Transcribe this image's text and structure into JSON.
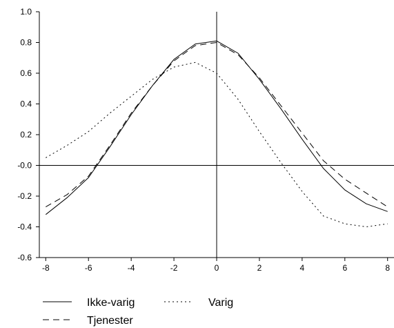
{
  "chart_data": {
    "type": "line",
    "title": "",
    "xlabel": "",
    "ylabel": "",
    "xlim": [
      -8.3,
      8.3
    ],
    "ylim": [
      -0.6,
      1.0
    ],
    "x_ticks": [
      -8,
      -6,
      -4,
      -2,
      0,
      2,
      4,
      6,
      8
    ],
    "x_tick_labels": [
      "-8",
      "-6",
      "-4",
      "-2",
      "0",
      "2",
      "4",
      "6",
      "8"
    ],
    "y_ticks": [
      1.0,
      0.8,
      0.6,
      0.4,
      0.2,
      0.0,
      -0.2,
      -0.4,
      -0.6
    ],
    "y_tick_labels": [
      "1.0",
      "0.8",
      "0.6",
      "0.4",
      "0.2",
      "-0.0",
      "-0.2",
      "-0.4",
      "-0.6"
    ],
    "grid": false,
    "legend_position": "bottom-left",
    "x": [
      -8,
      -7,
      -6,
      -5,
      -4,
      -3,
      -2,
      -1,
      0,
      1,
      2,
      3,
      4,
      5,
      6,
      7,
      8
    ],
    "series": [
      {
        "name": "Ikke-varig",
        "style": "solid",
        "values": [
          -0.32,
          -0.21,
          -0.08,
          0.12,
          0.33,
          0.52,
          0.69,
          0.79,
          0.81,
          0.73,
          0.56,
          0.37,
          0.17,
          -0.02,
          -0.16,
          -0.25,
          -0.3
        ]
      },
      {
        "name": "Varig",
        "style": "dotted",
        "values": [
          0.05,
          0.13,
          0.22,
          0.34,
          0.45,
          0.56,
          0.64,
          0.67,
          0.6,
          0.43,
          0.22,
          0.02,
          -0.17,
          -0.33,
          -0.38,
          -0.4,
          -0.38
        ]
      },
      {
        "name": "Tjenester",
        "style": "dashed",
        "values": [
          -0.27,
          -0.19,
          -0.07,
          0.13,
          0.34,
          0.52,
          0.68,
          0.78,
          0.8,
          0.72,
          0.57,
          0.39,
          0.21,
          0.03,
          -0.09,
          -0.18,
          -0.27
        ]
      }
    ]
  }
}
